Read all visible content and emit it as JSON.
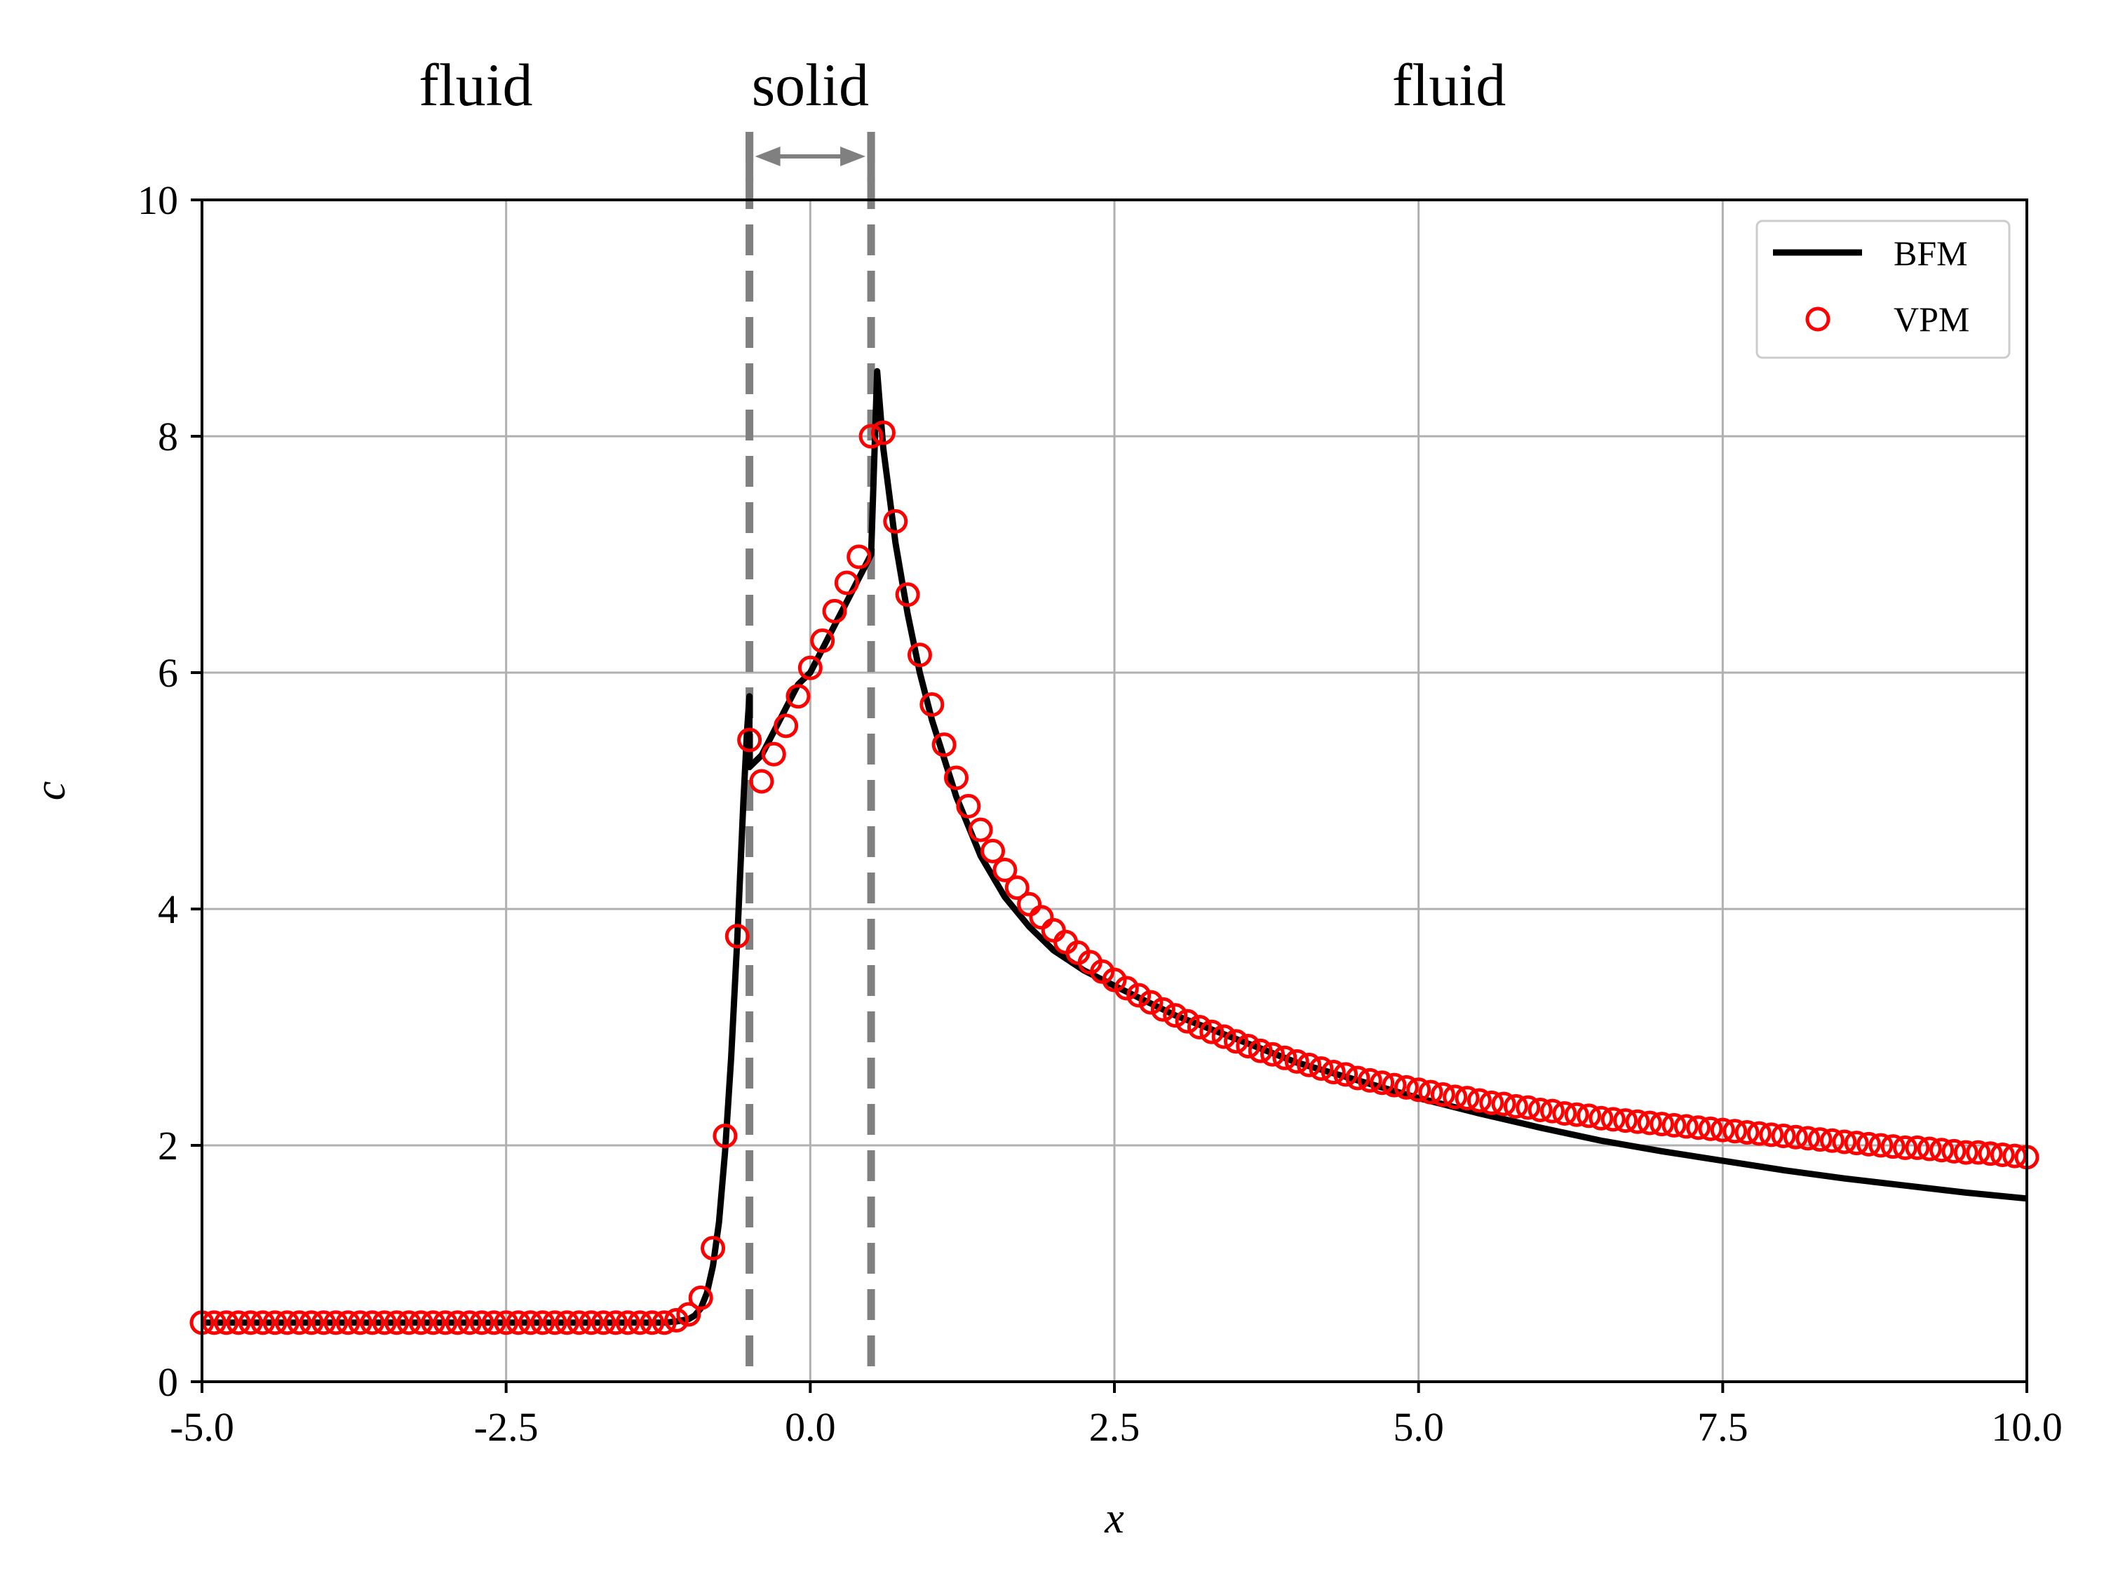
{
  "chart_data": {
    "type": "line",
    "xlabel": "x",
    "ylabel": "c",
    "xlim": [
      -5.0,
      10.0
    ],
    "ylim": [
      0,
      10
    ],
    "grid": true,
    "legend_position": "top-right",
    "x_ticks": [
      -5.0,
      -2.5,
      0.0,
      2.5,
      5.0,
      7.5,
      10.0
    ],
    "x_tick_labels": [
      "-5.0",
      "-2.5",
      "0.0",
      "2.5",
      "5.0",
      "7.5",
      "10.0"
    ],
    "y_ticks": [
      0,
      2,
      4,
      6,
      8,
      10
    ],
    "y_tick_labels": [
      "0",
      "2",
      "4",
      "6",
      "8",
      "10"
    ],
    "regions": [
      {
        "label": "fluid",
        "center_x": -2.75
      },
      {
        "label": "solid",
        "center_x": 0.0
      },
      {
        "label": "fluid",
        "center_x": 5.25
      }
    ],
    "solid_bounds": [
      -0.5,
      0.5
    ],
    "colors": {
      "bfm": "#000000",
      "vpm": "#ff0000",
      "boundary": "#808080",
      "grid": "#b0b0b0"
    },
    "series": [
      {
        "name": "BFM",
        "style": "line",
        "x": [
          -5.0,
          -1.2,
          -1.1,
          -1.0,
          -0.95,
          -0.9,
          -0.85,
          -0.8,
          -0.75,
          -0.7,
          -0.65,
          -0.6,
          -0.55,
          -0.52,
          -0.5,
          -0.5,
          -0.4,
          -0.3,
          -0.2,
          -0.1,
          0.0,
          0.1,
          0.2,
          0.3,
          0.4,
          0.5,
          0.55,
          0.6,
          0.7,
          0.8,
          0.9,
          1.0,
          1.2,
          1.4,
          1.6,
          1.8,
          2.0,
          2.25,
          2.5,
          3.0,
          3.5,
          4.0,
          4.5,
          5.0,
          5.5,
          6.0,
          6.5,
          7.0,
          7.5,
          8.0,
          8.5,
          9.0,
          9.5,
          10.0
        ],
        "y": [
          0.5,
          0.5,
          0.51,
          0.53,
          0.56,
          0.62,
          0.75,
          0.98,
          1.35,
          1.95,
          2.75,
          3.75,
          4.9,
          5.5,
          5.8,
          5.2,
          5.3,
          5.5,
          5.7,
          5.9,
          6.0,
          6.2,
          6.4,
          6.6,
          6.8,
          7.0,
          8.55,
          7.9,
          7.1,
          6.5,
          6.0,
          5.6,
          4.95,
          4.45,
          4.1,
          3.85,
          3.65,
          3.48,
          3.35,
          3.1,
          2.9,
          2.7,
          2.55,
          2.4,
          2.27,
          2.15,
          2.04,
          1.95,
          1.87,
          1.79,
          1.72,
          1.66,
          1.6,
          1.55
        ]
      },
      {
        "name": "VPM",
        "style": "marker",
        "x": [
          -5.0,
          -4.9,
          -4.8,
          -4.7,
          -4.6,
          -4.5,
          -4.4,
          -4.3,
          -4.2,
          -4.1,
          -4.0,
          -3.9,
          -3.8,
          -3.7,
          -3.6,
          -3.5,
          -3.4,
          -3.3,
          -3.2,
          -3.1,
          -3.0,
          -2.9,
          -2.8,
          -2.7,
          -2.6,
          -2.5,
          -2.4,
          -2.3,
          -2.2,
          -2.1,
          -2.0,
          -1.9,
          -1.8,
          -1.7,
          -1.6,
          -1.5,
          -1.4,
          -1.3,
          -1.2,
          -1.1,
          -1.0,
          -0.9,
          -0.8,
          -0.7,
          -0.6,
          -0.5,
          -0.4,
          -0.3,
          -0.2,
          -0.1,
          0.0,
          0.1,
          0.2,
          0.3,
          0.4,
          0.5,
          0.6,
          0.7,
          0.8,
          0.9,
          1.0,
          1.1,
          1.2,
          1.3,
          1.4,
          1.5,
          1.6,
          1.7,
          1.8,
          1.9,
          2.0,
          2.1,
          2.2,
          2.3,
          2.4,
          2.5,
          2.6,
          2.7,
          2.8,
          2.9,
          3.0,
          3.1,
          3.2,
          3.3,
          3.4,
          3.5,
          3.6,
          3.7,
          3.8,
          3.9,
          4.0,
          4.1,
          4.2,
          4.3,
          4.4,
          4.5,
          4.6,
          4.7,
          4.8,
          4.9,
          5.0,
          5.1,
          5.2,
          5.3,
          5.4,
          5.5,
          5.6,
          5.7,
          5.8,
          5.9,
          6.0,
          6.1,
          6.2,
          6.3,
          6.4,
          6.5,
          6.6,
          6.7,
          6.8,
          6.9,
          7.0,
          7.1,
          7.2,
          7.3,
          7.4,
          7.5,
          7.6,
          7.7,
          7.8,
          7.9,
          8.0,
          8.1,
          8.2,
          8.3,
          8.4,
          8.5,
          8.6,
          8.7,
          8.8,
          8.9,
          9.0,
          9.1,
          9.2,
          9.3,
          9.4,
          9.5,
          9.6,
          9.7,
          9.8,
          9.9,
          10.0
        ],
        "y": [
          0.5,
          0.5,
          0.5,
          0.5,
          0.5,
          0.5,
          0.5,
          0.5,
          0.5,
          0.5,
          0.5,
          0.5,
          0.5,
          0.5,
          0.5,
          0.5,
          0.5,
          0.5,
          0.5,
          0.5,
          0.5,
          0.5,
          0.5,
          0.5,
          0.5,
          0.5,
          0.5,
          0.5,
          0.5,
          0.5,
          0.5,
          0.5,
          0.5,
          0.5,
          0.5,
          0.5,
          0.5,
          0.5,
          0.5,
          0.52,
          0.57,
          0.71,
          1.13,
          2.08,
          3.77,
          5.43,
          5.08,
          5.31,
          5.55,
          5.8,
          6.04,
          6.27,
          6.52,
          6.76,
          6.98,
          8.0,
          8.03,
          7.28,
          6.66,
          6.15,
          5.73,
          5.39,
          5.11,
          4.87,
          4.67,
          4.49,
          4.33,
          4.18,
          4.04,
          3.93,
          3.82,
          3.72,
          3.63,
          3.55,
          3.47,
          3.4,
          3.33,
          3.27,
          3.21,
          3.15,
          3.1,
          3.05,
          3.0,
          2.96,
          2.92,
          2.88,
          2.84,
          2.8,
          2.77,
          2.74,
          2.71,
          2.68,
          2.65,
          2.62,
          2.6,
          2.57,
          2.55,
          2.53,
          2.51,
          2.49,
          2.47,
          2.45,
          2.43,
          2.41,
          2.4,
          2.38,
          2.36,
          2.35,
          2.33,
          2.32,
          2.3,
          2.29,
          2.27,
          2.26,
          2.25,
          2.23,
          2.22,
          2.21,
          2.2,
          2.19,
          2.18,
          2.17,
          2.16,
          2.15,
          2.14,
          2.13,
          2.12,
          2.11,
          2.1,
          2.09,
          2.08,
          2.07,
          2.06,
          2.05,
          2.04,
          2.03,
          2.02,
          2.01,
          2.0,
          1.99,
          1.98,
          1.98,
          1.97,
          1.96,
          1.95,
          1.94,
          1.94,
          1.93,
          1.92,
          1.91,
          1.9
        ]
      }
    ]
  }
}
